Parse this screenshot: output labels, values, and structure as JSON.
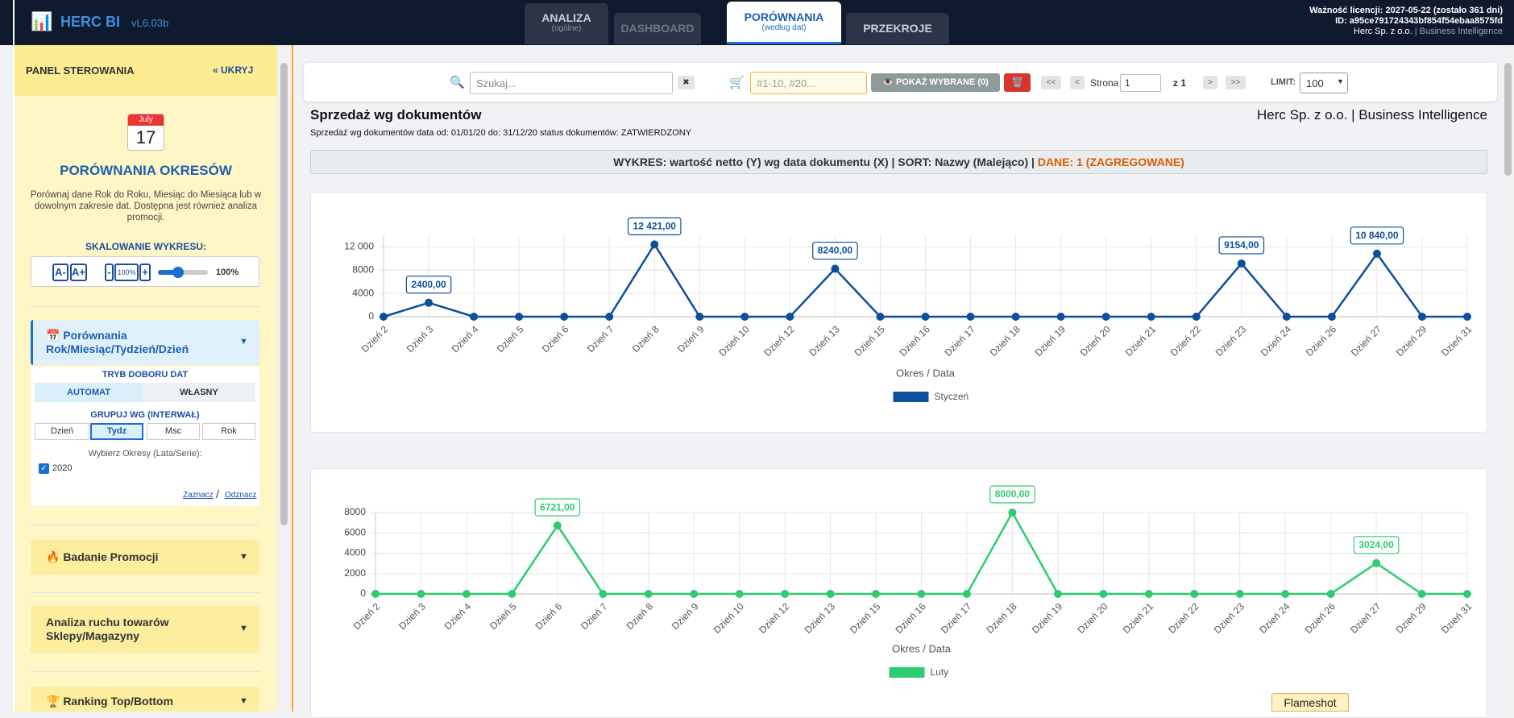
{
  "header": {
    "logo_icon": "📊",
    "logo": "HERC BI",
    "version": "vL6.03b",
    "tabs": [
      {
        "label": "ANALIZA",
        "sub": "(ogólne)"
      },
      {
        "label": "DASHBOARD"
      },
      {
        "label": "PORÓWNANIA",
        "sub": "(według dat)"
      },
      {
        "label": "PRZEKROJE"
      }
    ],
    "license": "Ważność licencji: 2027-05-22 (zostało 361 dni)",
    "license_id": "ID: a95ce791724343bf854f54ebaa8575fd",
    "company": "Herc Sp. z o.o.",
    "tagline": "| Business Intelligence"
  },
  "sidebar": {
    "title": "PANEL STEROWANIA",
    "hide": "« UKRYJ",
    "calendar": {
      "month": "July",
      "day": "17"
    },
    "heading": "PORÓWNANIA OKRESÓW",
    "description": "Porównaj dane Rok do Roku, Miesiąc do Miesiąca lub w dowolnym zakresie dat. Dostępna jest również analiza promocji.",
    "scale_label": "SKALOWANIE WYKRESU:",
    "scale_buttons": [
      "A-",
      "A+",
      "-",
      "100%",
      "+"
    ],
    "scale_value": "100%",
    "section1": {
      "title": "📅 Porównania Rok/Miesiąc/Tydzień/Dzień",
      "arrow": "▼",
      "mode_label": "TRYB DOBORU DAT",
      "modes": [
        "AUTOMAT",
        "WŁASNY"
      ],
      "group_label": "GRUPUJ WG (INTERWAŁ)",
      "groups": [
        "Dzień",
        "Tydz",
        "Msc",
        "Rok"
      ],
      "periods_label": "Wybierz Okresy (Lata/Serie):",
      "periods": [
        "2020"
      ],
      "select": "Zaznacz",
      "separator": "/",
      "deselect": "Odznacz"
    },
    "sections": [
      {
        "title": "🔥 Badanie Promocji",
        "arrow": "▼"
      },
      {
        "title": "Analiza ruchu towarów Sklepy/Magazyny",
        "arrow": "▼"
      },
      {
        "title": "🏆 Ranking Top/Bottom",
        "arrow": "▼"
      }
    ]
  },
  "toolbar": {
    "search_icon": "🔍",
    "search": "Szukaj...",
    "clear": "✖",
    "cart_icon": "🛒",
    "ids": "#1-10, #20...",
    "show": "👁️ POKAŻ WYBRANE (0)",
    "delete": "🗑️",
    "first": "<<",
    "prev": "<",
    "page_label": "Strona",
    "page": "1",
    "of": "z 1",
    "next": ">",
    "last": ">>",
    "limit_label": "LIMIT:",
    "limit": "100"
  },
  "report": {
    "title": "Sprzedaż wg dokumentów",
    "company": "Herc Sp. z o.o. | Business Intelligence",
    "subtitle": "Sprzedaż wg dokumentów data od: 01/01/20 do: 31/12/20 status dokumentów: ZATWIERDZONY",
    "info": "WYKRES: wartość netto (Y) wg data dokumentu (X) | SORT: Nazwy (Malejąco) |",
    "info_highlight": "DANE: 1 (ZAGREGOWANE)"
  },
  "overlay": "Flameshot",
  "chart_data": [
    {
      "type": "line",
      "x_label": "Okres / Data",
      "grid": true,
      "categories": [
        "Dzień 2",
        "Dzień 3",
        "Dzień 4",
        "Dzień 5",
        "Dzień 6",
        "Dzień 7",
        "Dzień 8",
        "Dzień 9",
        "Dzień 10",
        "Dzień 12",
        "Dzień 13",
        "Dzień 15",
        "Dzień 16",
        "Dzień 17",
        "Dzień 18",
        "Dzień 19",
        "Dzień 20",
        "Dzień 21",
        "Dzień 22",
        "Dzień 23",
        "Dzień 24",
        "Dzień 26",
        "Dzień 27",
        "Dzień 29",
        "Dzień 31"
      ],
      "series": [
        {
          "name": "Styczeń",
          "color": "#0d4f9c",
          "values": [
            0,
            2400,
            0,
            0,
            0,
            0,
            12421,
            0,
            0,
            0,
            8240,
            0,
            0,
            0,
            0,
            0,
            0,
            0,
            0,
            9154,
            0,
            0,
            10840,
            0,
            0
          ],
          "value_labels": [
            null,
            "2400,00",
            null,
            null,
            null,
            null,
            "12 421,00",
            null,
            null,
            null,
            "8240,00",
            null,
            null,
            null,
            null,
            null,
            null,
            null,
            null,
            "9154,00",
            null,
            null,
            "10 840,00",
            null,
            null
          ]
        }
      ],
      "ylim": [
        0,
        14000
      ],
      "yticks": [
        0,
        4000,
        8000,
        {
          "value": 12000,
          "label": "12 000"
        }
      ]
    },
    {
      "type": "line",
      "x_label": "Okres / Data",
      "grid": true,
      "categories": [
        "Dzień 2",
        "Dzień 3",
        "Dzień 4",
        "Dzień 5",
        "Dzień 6",
        "Dzień 7",
        "Dzień 8",
        "Dzień 9",
        "Dzień 10",
        "Dzień 12",
        "Dzień 13",
        "Dzień 15",
        "Dzień 16",
        "Dzień 17",
        "Dzień 18",
        "Dzień 19",
        "Dzień 20",
        "Dzień 21",
        "Dzień 22",
        "Dzień 23",
        "Dzień 24",
        "Dzień 26",
        "Dzień 27",
        "Dzień 29",
        "Dzień 31"
      ],
      "series": [
        {
          "name": "Luty",
          "color": "#2ecc71",
          "values": [
            0,
            0,
            0,
            0,
            6721,
            0,
            0,
            0,
            0,
            0,
            0,
            0,
            0,
            0,
            8000,
            0,
            0,
            0,
            0,
            0,
            0,
            0,
            3024,
            0,
            0
          ],
          "value_labels": [
            null,
            null,
            null,
            null,
            "6721,00",
            null,
            null,
            null,
            null,
            null,
            null,
            null,
            null,
            null,
            "8000,00",
            null,
            null,
            null,
            null,
            null,
            null,
            null,
            "3024,00",
            null,
            null
          ]
        }
      ],
      "ylim": [
        0,
        8000
      ],
      "yticks": [
        0,
        2000,
        4000,
        6000,
        8000
      ]
    }
  ]
}
